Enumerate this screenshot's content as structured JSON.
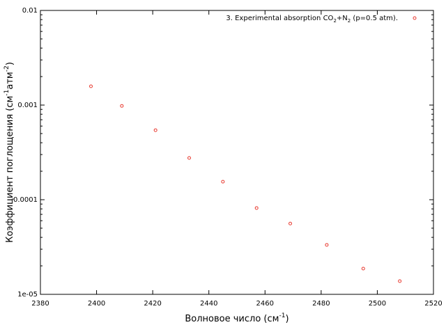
{
  "chart_data": {
    "type": "scatter",
    "log_y": true,
    "xlabel": [
      "Волновое число (см",
      "-1",
      ")"
    ],
    "ylabel": [
      "Коэффициент поглощения (см",
      "-1",
      "атм",
      "-2",
      ")"
    ],
    "legend": "top-right",
    "xlim": [
      2380,
      2520
    ],
    "xticks": [
      2380,
      2400,
      2420,
      2440,
      2460,
      2480,
      2500,
      2520
    ],
    "ylim": [
      1e-05,
      0.01
    ],
    "yticks": [
      0.01,
      0.001,
      0.0001,
      {
        "value": 1e-05,
        "label": "1e-05"
      }
    ],
    "series": [
      {
        "name": [
          "3. Experimental absorption CO",
          "2",
          "+N",
          "2",
          " (p=0.5 atm)."
        ],
        "color": "#e8382e",
        "x": [
          2398,
          2409,
          2421,
          2433,
          2445,
          2457,
          2469,
          2482,
          2495,
          2508
        ],
        "values": [
          0.00158,
          0.00098,
          0.000543,
          0.000276,
          0.000155,
          8.17e-05,
          5.6e-05,
          3.33e-05,
          1.87e-05,
          1.38e-05
        ]
      }
    ]
  }
}
